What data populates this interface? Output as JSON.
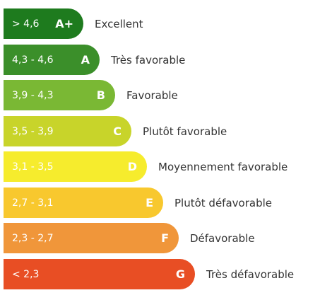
{
  "rows": [
    {
      "range": "> 4,6",
      "grade": "A+",
      "label": "Excellent",
      "color": "#1e7b1e"
    },
    {
      "range": "4,3 - 4,6",
      "grade": "A",
      "label": "Très favorable",
      "color": "#3b8f2a"
    },
    {
      "range": "3,9 - 4,3",
      "grade": "B",
      "label": "Favorable",
      "color": "#7ab834"
    },
    {
      "range": "3,5 - 3,9",
      "grade": "C",
      "label": "Plutôt favorable",
      "color": "#c8d42a"
    },
    {
      "range": "3,1 - 3,5",
      "grade": "D",
      "label": "Moyennement favorable",
      "color": "#f6ec2d"
    },
    {
      "range": "2,7 - 3,1",
      "grade": "E",
      "label": "Plutôt défavorable",
      "color": "#f8c82e"
    },
    {
      "range": "2,3 - 2,7",
      "grade": "F",
      "label": "Défavorable",
      "color": "#f0963a"
    },
    {
      "range": "< 2,3",
      "grade": "G",
      "label": "Très défavorable",
      "color": "#e84e24"
    }
  ]
}
